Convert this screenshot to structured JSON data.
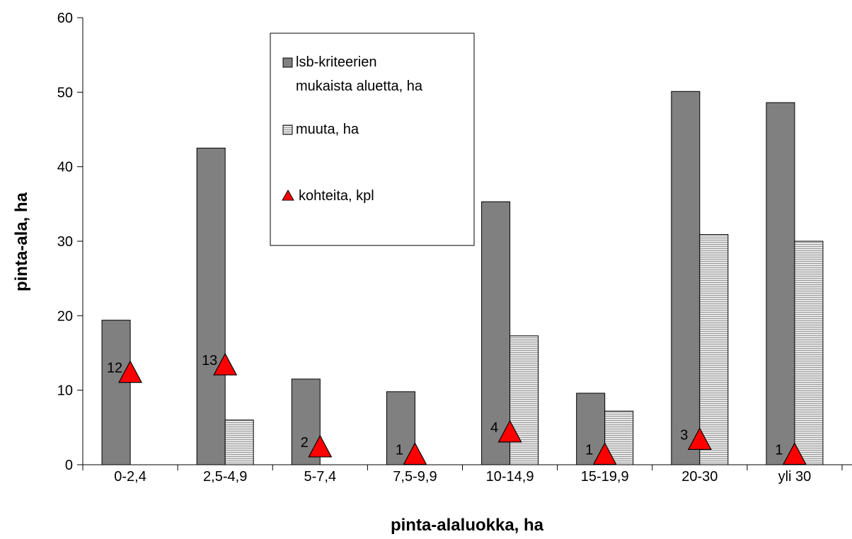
{
  "chart_data": {
    "type": "bar",
    "categories": [
      "0-2,4",
      "2,5-4,9",
      "5-7,4",
      "7,5-9,9",
      "10-14,9",
      "15-19,9",
      "20-30",
      "yli 30"
    ],
    "series": [
      {
        "name": "lsb-kriteerien mukaista aluetta, ha",
        "kind": "bar",
        "fill": "dark-gray",
        "values": [
          19.4,
          42.5,
          11.5,
          9.8,
          35.3,
          9.6,
          50.1,
          48.6
        ]
      },
      {
        "name": "muuta, ha",
        "kind": "bar",
        "fill": "light-gray-striped",
        "values": [
          0,
          6.0,
          0,
          0,
          17.3,
          7.2,
          30.9,
          30.0
        ]
      },
      {
        "name": "kohteita, kpl",
        "kind": "marker",
        "marker": "red-triangle",
        "values": [
          12,
          13,
          2,
          1,
          4,
          1,
          3,
          1
        ]
      }
    ],
    "legend_lines": [
      [
        "lsb-kriteerien",
        "mukaista aluetta, ha"
      ],
      [
        "muuta, ha"
      ],
      [
        "kohteita, kpl"
      ]
    ],
    "xlabel": "pinta-alaluokka, ha",
    "ylabel": "pinta-ala, ha",
    "ylim": [
      0,
      60
    ],
    "yticks": [
      0,
      10,
      20,
      30,
      40,
      50,
      60
    ],
    "grid": false,
    "legend_position": "top-center",
    "colors": {
      "bar1": "#808080",
      "bar2": "#c8c8c8",
      "marker": "#ff0000"
    }
  }
}
